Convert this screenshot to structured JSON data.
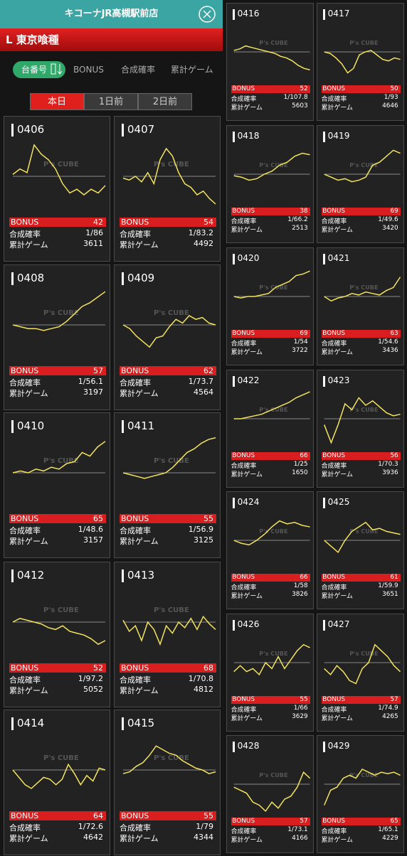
{
  "header": {
    "store": "キコーナJR高槻駅前店",
    "machine_type": "L 東京喰種"
  },
  "sort": {
    "label": "台番号",
    "options": [
      "BONUS",
      "合成確率",
      "累計ゲーム"
    ]
  },
  "tabs": [
    "本日",
    "1日前",
    "2日前"
  ],
  "labels": {
    "bonus": "BONUS",
    "prob": "合成確率",
    "games": "累計ゲーム",
    "watermark": "P's CUBE"
  },
  "machines": [
    {
      "id": "0406",
      "bonus": 42,
      "prob": "1/86",
      "games": 3611,
      "trend": [
        5,
        20,
        10,
        85,
        60,
        45,
        20,
        -20,
        -45,
        -35,
        -50,
        -35,
        -45,
        -25
      ]
    },
    {
      "id": "0407",
      "bonus": 54,
      "prob": "1/83.2",
      "games": 4492,
      "trend": [
        -5,
        -10,
        0,
        -15,
        10,
        -20,
        45,
        75,
        55,
        10,
        -20,
        -30,
        -50,
        -40,
        -60,
        -75
      ]
    },
    {
      "id": "0408",
      "bonus": 57,
      "prob": "1/56.1",
      "games": 3197,
      "trend": [
        0,
        -5,
        -10,
        -10,
        -15,
        -10,
        -5,
        10,
        30,
        50,
        60,
        75,
        90
      ]
    },
    {
      "id": "0409",
      "bonus": 62,
      "prob": "1/73.7",
      "games": 4564,
      "trend": [
        0,
        -10,
        -30,
        -45,
        -60,
        -35,
        -30,
        -5,
        15,
        5,
        25,
        15,
        20,
        5,
        0
      ]
    },
    {
      "id": "0410",
      "bonus": 65,
      "prob": "1/48.6",
      "games": 3157,
      "trend": [
        0,
        5,
        0,
        10,
        5,
        15,
        10,
        25,
        30,
        55,
        45,
        70,
        85
      ]
    },
    {
      "id": "0411",
      "bonus": 55,
      "prob": "1/56.9",
      "games": 3125,
      "trend": [
        0,
        -5,
        -10,
        -15,
        -10,
        -5,
        0,
        15,
        35,
        55,
        65,
        80,
        90,
        95
      ]
    },
    {
      "id": "0412",
      "bonus": 52,
      "prob": "1/97.2",
      "games": 5052,
      "trend": [
        0,
        10,
        5,
        0,
        -5,
        -15,
        -20,
        -10,
        -25,
        -30,
        -35,
        -45,
        -60,
        -50
      ]
    },
    {
      "id": "0413",
      "bonus": 68,
      "prob": "1/70.8",
      "games": 4812,
      "trend": [
        5,
        -25,
        -10,
        -50,
        0,
        -20,
        -60,
        -10,
        -30,
        0,
        -15,
        10,
        -20,
        15,
        -5,
        -20
      ]
    },
    {
      "id": "0414",
      "bonus": 64,
      "prob": "1/72.6",
      "games": 4642,
      "trend": [
        0,
        -20,
        -40,
        -50,
        -35,
        -20,
        -25,
        -40,
        -25,
        15,
        -10,
        -40,
        -15,
        -30,
        5,
        0
      ]
    },
    {
      "id": "0415",
      "bonus": 55,
      "prob": "1/79",
      "games": 4344,
      "trend": [
        -10,
        -5,
        10,
        20,
        40,
        65,
        55,
        45,
        40,
        25,
        15,
        5,
        0,
        -10,
        -5
      ]
    },
    {
      "id": "0416",
      "bonus": 52,
      "prob": "1/107.8",
      "games": 5603,
      "trend": [
        5,
        10,
        20,
        15,
        10,
        5,
        0,
        -5,
        -15,
        -20,
        -30,
        -45,
        -55,
        -60
      ]
    },
    {
      "id": "0417",
      "bonus": 50,
      "prob": "1/93",
      "games": 4646,
      "trend": [
        0,
        -5,
        -20,
        -40,
        -70,
        -55,
        -10,
        0,
        5,
        -10,
        -25,
        -30,
        -20,
        -25
      ]
    },
    {
      "id": "0418",
      "bonus": 38,
      "prob": "1/66.2",
      "games": 2513,
      "trend": [
        -5,
        -10,
        -20,
        -15,
        0,
        10,
        30,
        40,
        60,
        70,
        65
      ]
    },
    {
      "id": "0419",
      "bonus": 69,
      "prob": "1/49.6",
      "games": 3420,
      "trend": [
        0,
        -10,
        -20,
        -15,
        -25,
        -20,
        -10,
        30,
        40,
        60,
        80,
        70
      ]
    },
    {
      "id": "0420",
      "bonus": 69,
      "prob": "1/54",
      "games": 3722,
      "trend": [
        0,
        -5,
        0,
        0,
        5,
        10,
        30,
        40,
        50,
        70,
        75,
        85
      ]
    },
    {
      "id": "0421",
      "bonus": 63,
      "prob": "1/54.6",
      "games": 3436,
      "trend": [
        0,
        -15,
        -5,
        0,
        10,
        5,
        15,
        10,
        5,
        20,
        30,
        65
      ]
    },
    {
      "id": "0422",
      "bonus": 66,
      "prob": "1/25",
      "games": 1650,
      "trend": [
        0,
        0,
        5,
        10,
        15,
        25,
        35,
        45,
        55,
        70,
        80,
        90
      ]
    },
    {
      "id": "0423",
      "bonus": 56,
      "prob": "1/70.3",
      "games": 3936,
      "trend": [
        -20,
        -80,
        -20,
        50,
        30,
        70,
        45,
        60,
        40,
        20,
        10,
        15
      ]
    },
    {
      "id": "0424",
      "bonus": 66,
      "prob": "1/58",
      "games": 3826,
      "trend": [
        0,
        -10,
        -15,
        0,
        20,
        45,
        65,
        55,
        60,
        50,
        45
      ]
    },
    {
      "id": "0425",
      "bonus": 61,
      "prob": "1/59.9",
      "games": 3651,
      "trend": [
        0,
        -20,
        -40,
        0,
        30,
        45,
        60,
        35,
        40,
        30,
        25,
        20
      ]
    },
    {
      "id": "0426",
      "bonus": 55,
      "prob": "1/66",
      "games": 3629,
      "trend": [
        -30,
        -10,
        -30,
        -20,
        -40,
        0,
        -20,
        20,
        -20,
        10,
        40,
        60,
        50
      ]
    },
    {
      "id": "0427",
      "bonus": 57,
      "prob": "1/74.9",
      "games": 4265,
      "trend": [
        -20,
        -40,
        -10,
        -30,
        -60,
        -70,
        -20,
        0,
        60,
        40,
        20,
        -10,
        -30
      ]
    },
    {
      "id": "0428",
      "bonus": 57,
      "prob": "1/73.1",
      "games": 4166,
      "trend": [
        -10,
        -20,
        -30,
        -60,
        -70,
        -90,
        -60,
        -80,
        -50,
        -40,
        -10,
        40,
        20
      ]
    },
    {
      "id": "0429",
      "bonus": 65,
      "prob": "1/65.1",
      "games": 4229,
      "trend": [
        -70,
        -20,
        -10,
        20,
        30,
        20,
        50,
        40,
        30,
        40,
        35,
        40,
        30
      ]
    }
  ]
}
